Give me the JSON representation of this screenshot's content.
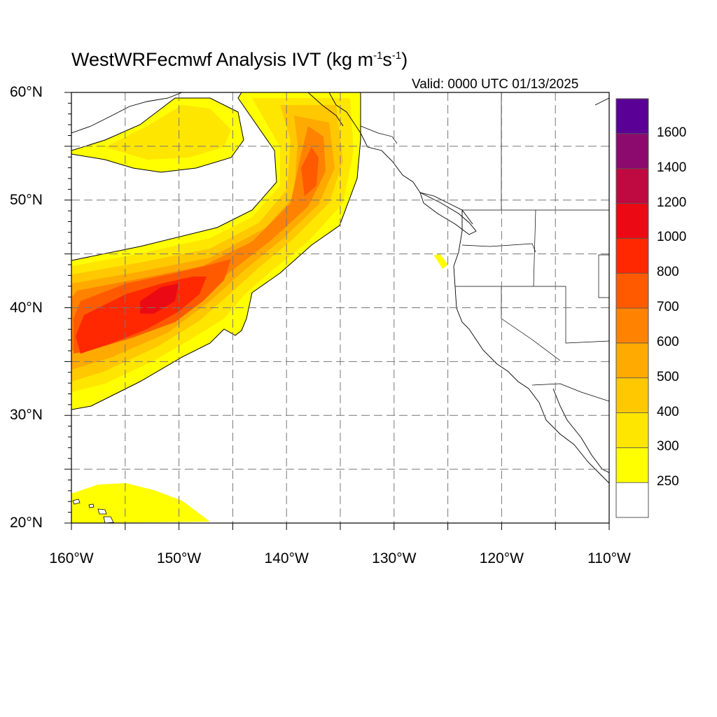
{
  "title": {
    "prefix": "WestWRFecmwf Analysis IVT (kg m",
    "sup1": "-1",
    "mid": "s",
    "sup2": "-1",
    "suffix": ")"
  },
  "valid": "Valid: 0000 UTC 01/13/2025",
  "map_extent": {
    "lon": [
      -160,
      -110
    ],
    "lat": [
      20,
      60
    ]
  },
  "y_ticks": [
    {
      "lat": 60,
      "label": "60°N"
    },
    {
      "lat": 50,
      "label": "50°N"
    },
    {
      "lat": 40,
      "label": "40°N"
    },
    {
      "lat": 30,
      "label": "30°N"
    },
    {
      "lat": 20,
      "label": "20°N"
    }
  ],
  "x_ticks": [
    {
      "lon": -160,
      "label": "160°W"
    },
    {
      "lon": -150,
      "label": "150°W"
    },
    {
      "lon": -140,
      "label": "140°W"
    },
    {
      "lon": -130,
      "label": "130°W"
    },
    {
      "lon": -120,
      "label": "120°W"
    },
    {
      "lon": -110,
      "label": "110°W"
    }
  ],
  "colorbar": {
    "levels": [
      {
        "label": "250",
        "color": "#ffff00"
      },
      {
        "label": "300",
        "color": "#ffe600"
      },
      {
        "label": "400",
        "color": "#ffc800"
      },
      {
        "label": "500",
        "color": "#ffaa00"
      },
      {
        "label": "600",
        "color": "#ff8200"
      },
      {
        "label": "700",
        "color": "#ff5a00"
      },
      {
        "label": "800",
        "color": "#ff2800"
      },
      {
        "label": "1000",
        "color": "#eb0a14"
      },
      {
        "label": "1200",
        "color": "#be0a41"
      },
      {
        "label": "1400",
        "color": "#8c0a6e"
      },
      {
        "label": "1600",
        "color": "#5a0096"
      }
    ]
  }
}
